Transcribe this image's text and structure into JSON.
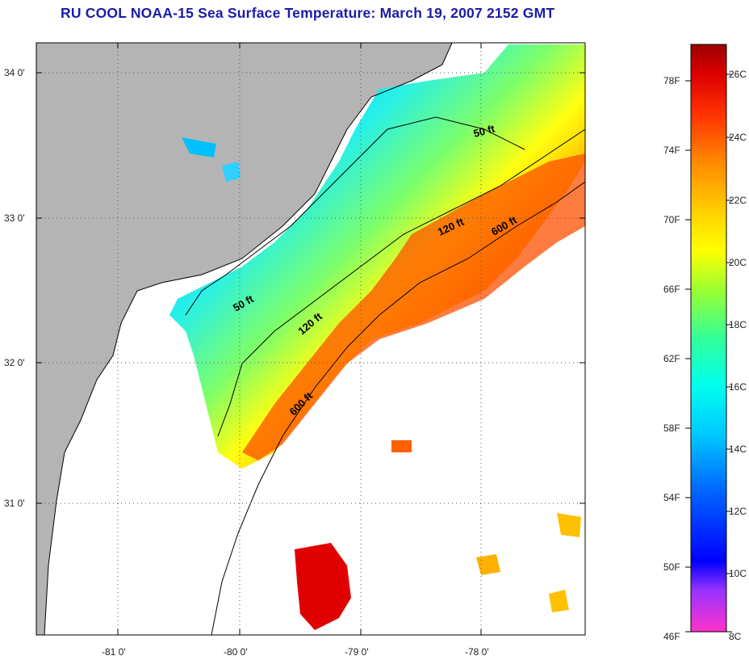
{
  "title": "RU COOL  NOAA-15  Sea Surface Temperature:  March 19, 2007 2152 GMT",
  "colors": {
    "land": "#b4b4b4",
    "missing": "#ffffff",
    "coastline": "#000000",
    "contour": "#000000",
    "title": "#1c1ca8"
  },
  "lat_labels": [
    "34 0'",
    "33 0'",
    "32 0'",
    "31 0'"
  ],
  "lon_labels": [
    "-81 0'",
    "-80 0'",
    "-79 0'",
    "-78 0'"
  ],
  "contour_labels": [
    "50 ft",
    "120 ft",
    "600 ft",
    "50 ft",
    "120 ft",
    "600 ft"
  ],
  "colorbar": {
    "fahrenheit_labels": [
      "78F",
      "74F",
      "70F",
      "66F",
      "62F",
      "58F",
      "54F",
      "50F",
      "46F"
    ],
    "celsius_labels": [
      "26C",
      "24C",
      "22C",
      "20C",
      "18C",
      "16C",
      "14C",
      "12C",
      "10C",
      "8C"
    ],
    "gradient_bottom_to_top": [
      "#ff33cc",
      "#9933ff",
      "#0000ff",
      "#0066ff",
      "#00ccff",
      "#00ffee",
      "#33ff99",
      "#99ff33",
      "#ffff00",
      "#ffcc00",
      "#ff8800",
      "#ff3300",
      "#dd0000",
      "#990000"
    ]
  }
}
